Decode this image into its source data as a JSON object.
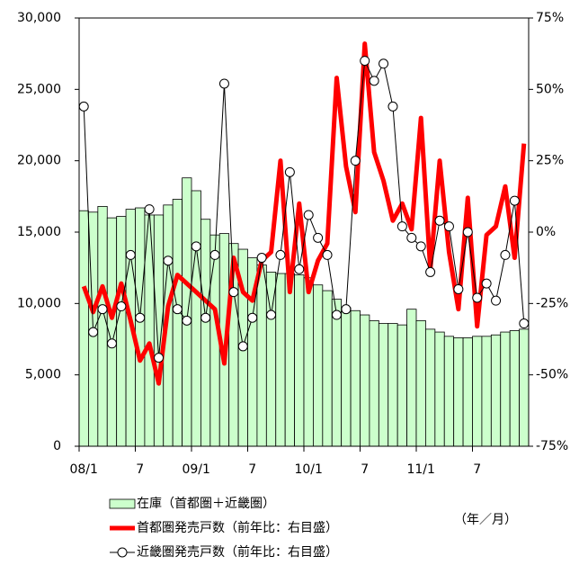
{
  "chart_data": {
    "type": "bar-line",
    "categories": [
      "08/1",
      null,
      null,
      null,
      null,
      null,
      "7",
      null,
      null,
      null,
      null,
      null,
      "09/1",
      null,
      null,
      null,
      null,
      null,
      "7",
      null,
      null,
      null,
      null,
      null,
      "10/1",
      null,
      null,
      null,
      null,
      null,
      "7",
      null,
      null,
      null,
      null,
      null,
      "11/1",
      null,
      null,
      null,
      null,
      null,
      "7",
      null,
      null,
      null,
      null,
      null
    ],
    "series": [
      {
        "name": "在庫（首都圏＋近畿圏）",
        "type": "bar",
        "color": "#ccffcc",
        "values": [
          16500,
          16400,
          16800,
          16000,
          16100,
          16600,
          16700,
          16200,
          16200,
          16900,
          17300,
          18800,
          17900,
          15900,
          14800,
          14900,
          14200,
          13800,
          13200,
          12700,
          12200,
          12100,
          12100,
          12000,
          11800,
          11300,
          10900,
          10300,
          9700,
          9500,
          9200,
          8800,
          8600,
          8600,
          8500,
          9600,
          8800,
          8200,
          8000,
          7700,
          7600,
          7600,
          7700,
          7700,
          7800,
          8000,
          8100,
          8200
        ]
      },
      {
        "name": "首都圏発売戸数（前年比：右目盛）",
        "type": "line",
        "axis": "y2",
        "color": "#ff0000",
        "values": [
          -19,
          -28,
          -19,
          -30,
          -18,
          -31,
          -45,
          -39,
          -53,
          -26,
          -15,
          -18,
          -21,
          -24,
          -27,
          -46,
          -9,
          -21,
          -24,
          -10,
          -7,
          25,
          -21,
          10,
          -21,
          -10,
          -4,
          54,
          23,
          7,
          66,
          28,
          18,
          4,
          10,
          1,
          40,
          -13,
          25,
          -7,
          -27,
          12,
          -33,
          -1,
          2,
          16,
          -9,
          31
        ]
      },
      {
        "name": "近畿圏発売戸数（前年比：右目盛）",
        "type": "line",
        "axis": "y2",
        "color": "#000000",
        "marker": "circle",
        "values": [
          44,
          -35,
          -27,
          -39,
          -26,
          -8,
          -30,
          8,
          -44,
          -10,
          -27,
          -31,
          -5,
          -30,
          -8,
          52,
          -21,
          -40,
          -30,
          -9,
          -29,
          -8,
          21,
          -13,
          6,
          -2,
          -8,
          -29,
          -27,
          25,
          60,
          53,
          59,
          44,
          2,
          -2,
          -5,
          -14,
          4,
          2,
          -20,
          0,
          -23,
          -18,
          -24,
          -8,
          11,
          -32
        ]
      }
    ],
    "ylim": [
      0,
      30000
    ],
    "yticks": [
      0,
      {
        "value": 5000,
        "label": "5,000"
      },
      {
        "value": 10000,
        "label": "10,000"
      },
      {
        "value": 15000,
        "label": "15,000"
      },
      {
        "value": 20000,
        "label": "20,000"
      },
      {
        "value": 25000,
        "label": "25,000"
      },
      {
        "value": 30000,
        "label": "30,000"
      }
    ],
    "y2lim": [
      -75,
      75
    ],
    "y2ticks": [
      {
        "value": -75,
        "label": "-75%"
      },
      {
        "value": -50,
        "label": "-50%"
      },
      {
        "value": -25,
        "label": "-25%"
      },
      {
        "value": 0,
        "label": "0%"
      },
      {
        "value": 25,
        "label": "25%"
      },
      {
        "value": 50,
        "label": "50%"
      },
      {
        "value": 75,
        "label": "75%"
      }
    ],
    "unit_note": "（年／月）",
    "grid": false
  }
}
